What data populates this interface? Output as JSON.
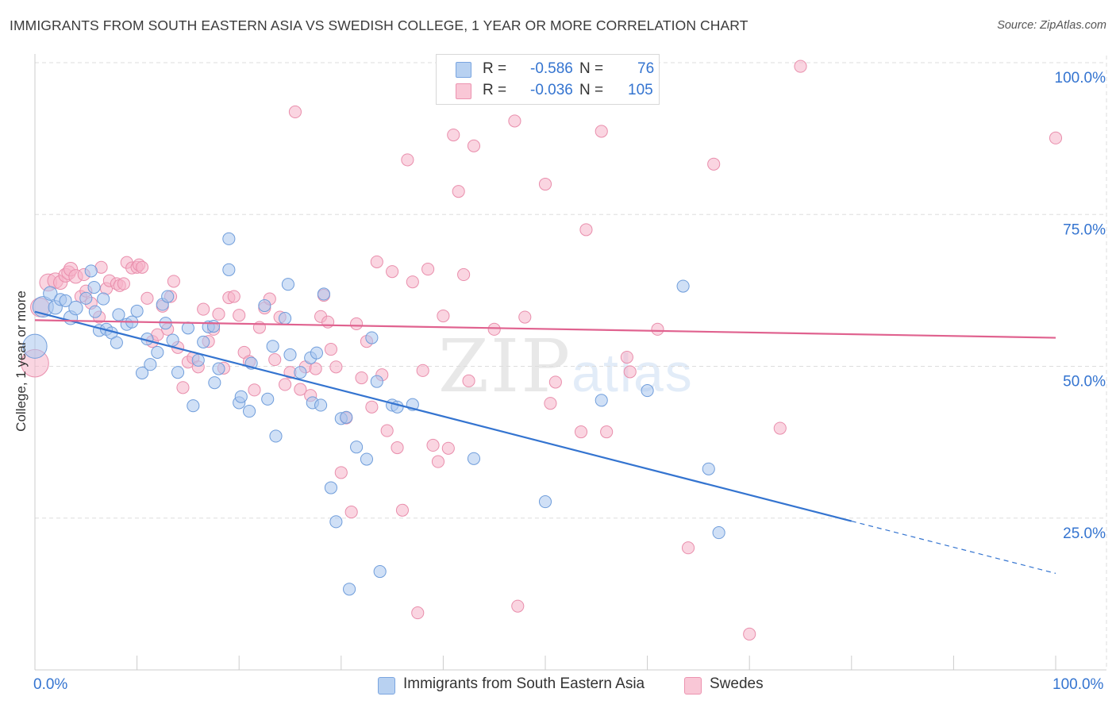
{
  "title": "IMMIGRANTS FROM SOUTH EASTERN ASIA VS SWEDISH COLLEGE, 1 YEAR OR MORE CORRELATION CHART",
  "source": "Source: ZipAtlas.com",
  "watermark": {
    "zip": "ZIP",
    "atlas": "atlas"
  },
  "legend": {
    "blue": {
      "r_label": "R =",
      "r_value": "-0.586",
      "n_label": "N =",
      "n_value": "76"
    },
    "pink": {
      "r_label": "R =",
      "r_value": "-0.036",
      "n_label": "N =",
      "n_value": "105"
    }
  },
  "bottom_legend": {
    "blue": "Immigrants from South Eastern Asia",
    "pink": "Swedes"
  },
  "x_tick_left": "0.0%",
  "x_tick_right": "100.0%",
  "colors": {
    "blue": "#3474d0",
    "blue_fill": "#a9c7ee",
    "pink": "#e0628f",
    "pink_fill": "#f6b3c8",
    "grid": "#dddddd"
  },
  "chart_data": {
    "type": "scatter",
    "title": "IMMIGRANTS FROM SOUTH EASTERN ASIA VS SWEDISH COLLEGE, 1 YEAR OR MORE CORRELATION CHART",
    "xlabel": "",
    "ylabel": "College, 1 year or more",
    "xlim": [
      0,
      100
    ],
    "ylim": [
      0,
      100
    ],
    "y_ticks": [
      25,
      50,
      75,
      100
    ],
    "y_tick_labels": [
      "25.0%",
      "50.0%",
      "75.0%",
      "100.0%"
    ],
    "x_tick_labels": [
      "0.0%",
      "100.0%"
    ],
    "legend_position": "top-center",
    "series": [
      {
        "name": "Immigrants from South Eastern Asia",
        "color": "blue",
        "R": -0.586,
        "N": 76,
        "trend": {
          "x0": 0,
          "y0": 59.0,
          "x1": 80,
          "y1": 24.5,
          "dash_x1": 100,
          "dash_y1": 15.9
        },
        "points": [
          [
            0,
            53.3,
            14
          ],
          [
            0.8,
            59.8,
            12
          ],
          [
            1.5,
            62.0,
            8
          ],
          [
            2,
            59.7,
            8
          ],
          [
            2.5,
            61.0,
            7
          ],
          [
            3,
            60.8,
            7
          ],
          [
            3.5,
            58.0,
            8
          ],
          [
            4,
            59.6,
            8
          ],
          [
            5,
            61.2,
            7
          ],
          [
            5.5,
            65.7,
            7
          ],
          [
            5.8,
            63.0,
            7
          ],
          [
            5.9,
            59.0,
            7
          ],
          [
            6.3,
            55.9,
            7
          ],
          [
            6.7,
            61.1,
            7
          ],
          [
            7,
            56.1,
            7
          ],
          [
            7.5,
            55.5,
            7
          ],
          [
            8,
            53.9,
            7
          ],
          [
            8.2,
            58.5,
            7
          ],
          [
            9,
            56.9,
            7
          ],
          [
            9.5,
            57.3,
            7
          ],
          [
            10,
            59.1,
            7
          ],
          [
            10.5,
            48.9,
            7
          ],
          [
            11,
            54.5,
            7
          ],
          [
            11.3,
            50.3,
            7
          ],
          [
            12,
            52.3,
            7
          ],
          [
            12.5,
            60.2,
            7
          ],
          [
            12.8,
            57.1,
            7
          ],
          [
            13,
            61.5,
            7
          ],
          [
            13.5,
            54.3,
            7
          ],
          [
            14,
            49.0,
            7
          ],
          [
            15,
            56.3,
            7
          ],
          [
            15.5,
            43.5,
            7
          ],
          [
            16,
            51.0,
            7
          ],
          [
            16.5,
            54.0,
            7
          ],
          [
            17,
            56.5,
            7
          ],
          [
            17.5,
            56.6,
            7
          ],
          [
            17.6,
            47.3,
            7
          ],
          [
            18,
            49.6,
            7
          ],
          [
            19,
            71.0,
            7
          ],
          [
            19,
            65.9,
            7
          ],
          [
            20,
            44.0,
            7
          ],
          [
            20.2,
            45.0,
            7
          ],
          [
            21,
            42.6,
            7
          ],
          [
            21.2,
            50.5,
            7
          ],
          [
            22.5,
            60.0,
            7
          ],
          [
            22.8,
            44.6,
            7
          ],
          [
            23.3,
            53.3,
            7
          ],
          [
            23.6,
            38.5,
            7
          ],
          [
            24.5,
            57.9,
            7
          ],
          [
            24.8,
            63.5,
            7
          ],
          [
            25,
            51.9,
            7
          ],
          [
            26,
            49.0,
            7
          ],
          [
            27,
            51.4,
            7
          ],
          [
            27.2,
            44.0,
            7
          ],
          [
            27.6,
            52.2,
            7
          ],
          [
            28,
            43.6,
            7
          ],
          [
            28.3,
            61.9,
            7
          ],
          [
            29,
            30.0,
            7
          ],
          [
            29.5,
            24.4,
            7
          ],
          [
            30,
            41.4,
            7
          ],
          [
            30.5,
            41.6,
            7
          ],
          [
            30.8,
            13.3,
            7
          ],
          [
            31.5,
            36.7,
            7
          ],
          [
            32.5,
            34.7,
            7
          ],
          [
            33,
            54.7,
            7
          ],
          [
            33.5,
            47.5,
            7
          ],
          [
            33.8,
            16.2,
            7
          ],
          [
            35,
            43.6,
            7
          ],
          [
            35.5,
            43.3,
            7
          ],
          [
            37,
            43.7,
            7
          ],
          [
            43,
            34.8,
            7
          ],
          [
            50,
            27.7,
            7
          ],
          [
            55.5,
            44.4,
            7
          ],
          [
            60,
            46.0,
            7
          ],
          [
            63.5,
            63.2,
            7
          ],
          [
            66,
            33.1,
            7
          ],
          [
            67,
            22.6,
            7
          ]
        ]
      },
      {
        "name": "Swedes",
        "color": "pink",
        "R": -0.036,
        "N": 105,
        "trend": {
          "x0": 0,
          "y0": 57.6,
          "x1": 100,
          "y1": 54.7
        },
        "points": [
          [
            0,
            50.5,
            16
          ],
          [
            0.5,
            59.7,
            11
          ],
          [
            1.3,
            63.8,
            10
          ],
          [
            2,
            64.1,
            9
          ],
          [
            2.5,
            63.8,
            8
          ],
          [
            3,
            65.0,
            8
          ],
          [
            3.3,
            65.4,
            8
          ],
          [
            3.5,
            66.0,
            8
          ],
          [
            4,
            64.8,
            8
          ],
          [
            4.5,
            61.5,
            7
          ],
          [
            4.8,
            65.1,
            7
          ],
          [
            5,
            62.4,
            7
          ],
          [
            5.5,
            60.4,
            7
          ],
          [
            6.3,
            58.1,
            7
          ],
          [
            6.5,
            66.3,
            7
          ],
          [
            7,
            62.8,
            7
          ],
          [
            7.3,
            64.1,
            7
          ],
          [
            8,
            63.6,
            7
          ],
          [
            8.3,
            63.3,
            7
          ],
          [
            8.7,
            63.6,
            7
          ],
          [
            9,
            67.1,
            7
          ],
          [
            9.5,
            66.2,
            7
          ],
          [
            10,
            66.3,
            7
          ],
          [
            10.2,
            66.7,
            7
          ],
          [
            10.5,
            66.3,
            7
          ],
          [
            11,
            61.2,
            7
          ],
          [
            11.5,
            54.1,
            7
          ],
          [
            12,
            55.2,
            7
          ],
          [
            12.5,
            59.9,
            7
          ],
          [
            13,
            56.1,
            7
          ],
          [
            13.3,
            61.5,
            7
          ],
          [
            13.6,
            64.0,
            7
          ],
          [
            14,
            53.1,
            7
          ],
          [
            14.5,
            46.5,
            7
          ],
          [
            15,
            50.7,
            7
          ],
          [
            15.5,
            51.4,
            7
          ],
          [
            16,
            49.9,
            7
          ],
          [
            16.5,
            59.4,
            7
          ],
          [
            17,
            54.1,
            7
          ],
          [
            17.5,
            56.1,
            7
          ],
          [
            18,
            58.6,
            7
          ],
          [
            18.5,
            49.7,
            7
          ],
          [
            19,
            61.3,
            7
          ],
          [
            19.5,
            61.5,
            7
          ],
          [
            20,
            58.4,
            7
          ],
          [
            20.5,
            52.3,
            7
          ],
          [
            21,
            50.8,
            7
          ],
          [
            21.5,
            46.1,
            7
          ],
          [
            22,
            56.4,
            7
          ],
          [
            22.5,
            59.6,
            7
          ],
          [
            23,
            61.1,
            7
          ],
          [
            23.5,
            51.1,
            7
          ],
          [
            24,
            58.1,
            7
          ],
          [
            24.5,
            47.0,
            7
          ],
          [
            25,
            49.0,
            7
          ],
          [
            25.5,
            91.9,
            7
          ],
          [
            26,
            46.2,
            7
          ],
          [
            26.5,
            49.9,
            7
          ],
          [
            27,
            45.2,
            7
          ],
          [
            27.5,
            49.6,
            7
          ],
          [
            28,
            58.2,
            7
          ],
          [
            28.3,
            61.7,
            7
          ],
          [
            28.7,
            57.3,
            7
          ],
          [
            29,
            52.8,
            7
          ],
          [
            29.5,
            49.9,
            7
          ],
          [
            30,
            32.5,
            7
          ],
          [
            30.5,
            41.5,
            7
          ],
          [
            31,
            26.0,
            7
          ],
          [
            31.5,
            57.0,
            7
          ],
          [
            32,
            48.1,
            7
          ],
          [
            32.5,
            54.1,
            7
          ],
          [
            33,
            43.3,
            7
          ],
          [
            33.5,
            67.2,
            7
          ],
          [
            34,
            48.6,
            7
          ],
          [
            34.5,
            39.4,
            7
          ],
          [
            35,
            65.6,
            7
          ],
          [
            35.5,
            36.6,
            7
          ],
          [
            36,
            26.3,
            7
          ],
          [
            36.5,
            84.0,
            7
          ],
          [
            37,
            63.9,
            7
          ],
          [
            37.5,
            9.4,
            7
          ],
          [
            38,
            49.3,
            7
          ],
          [
            38.5,
            66.0,
            7
          ],
          [
            39,
            37.0,
            7
          ],
          [
            39.5,
            34.3,
            7
          ],
          [
            40,
            58.3,
            7
          ],
          [
            40.5,
            36.5,
            7
          ],
          [
            41,
            88.1,
            7
          ],
          [
            41.5,
            78.8,
            7
          ],
          [
            42,
            65.1,
            7
          ],
          [
            42.5,
            47.6,
            7
          ],
          [
            43,
            86.3,
            7
          ],
          [
            45,
            56.1,
            7
          ],
          [
            47,
            90.4,
            7
          ],
          [
            47.3,
            10.5,
            7
          ],
          [
            48,
            58.1,
            7
          ],
          [
            50,
            80.0,
            7
          ],
          [
            50.5,
            43.9,
            7
          ],
          [
            51,
            47.4,
            7
          ],
          [
            53.5,
            39.2,
            7
          ],
          [
            54,
            72.5,
            7
          ],
          [
            55.5,
            88.7,
            7
          ],
          [
            56,
            39.2,
            7
          ],
          [
            58,
            51.5,
            7
          ],
          [
            58.3,
            49.1,
            7
          ],
          [
            61,
            56.1,
            7
          ],
          [
            64,
            20.1,
            7
          ],
          [
            66.5,
            83.3,
            7
          ],
          [
            70,
            5.9,
            7
          ],
          [
            73,
            39.8,
            7
          ],
          [
            75,
            99.4,
            7
          ],
          [
            100,
            87.6,
            7
          ]
        ]
      }
    ]
  }
}
